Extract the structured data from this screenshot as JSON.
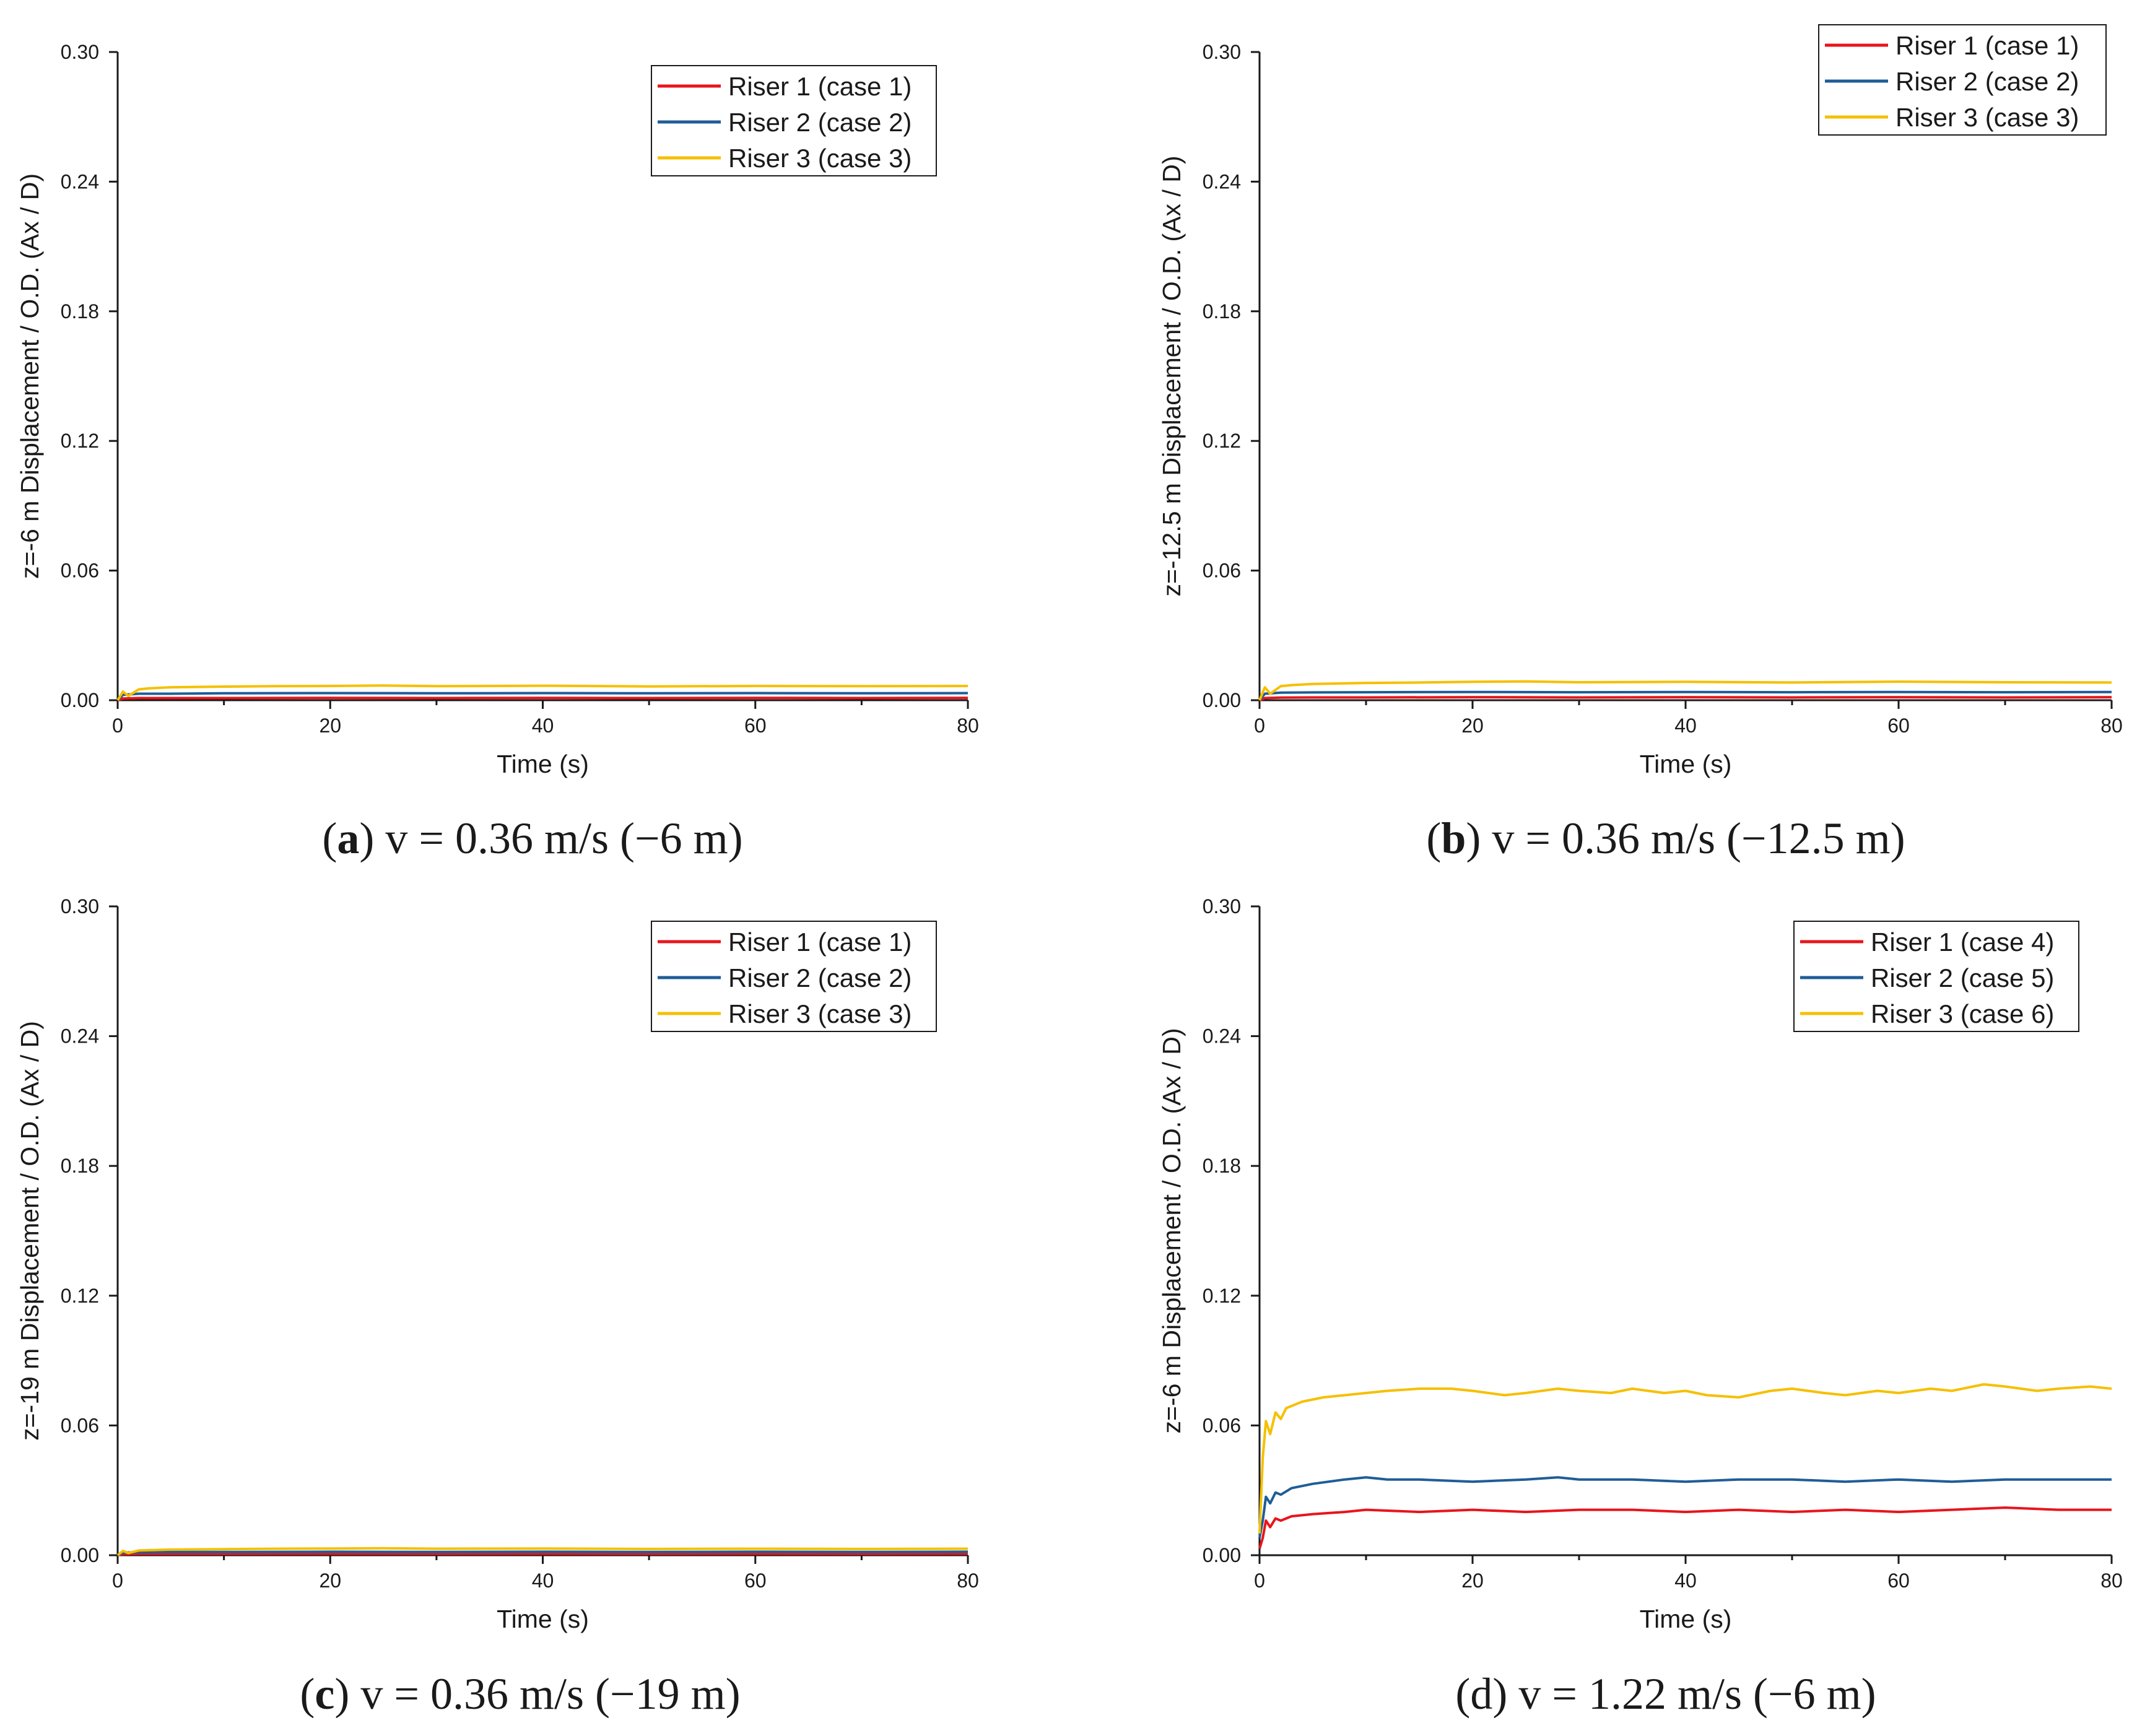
{
  "colors": {
    "red": "#e8151b",
    "blue": "#1f5d98",
    "yellow": "#f5c000",
    "axis": "#1a1a1a"
  },
  "chart_data": [
    {
      "type": "line",
      "panel": "a",
      "caption": {
        "letter": "a",
        "text": "v = 0.36 m/s (−6 m)"
      },
      "xlabel": "Time (s)",
      "ylabel": "z=-6 m Displacement / O.D. (Ax / D)",
      "xlim": [
        0,
        80
      ],
      "ylim": [
        0,
        0.3
      ],
      "xticks": [
        "0",
        "20",
        "40",
        "60",
        "80"
      ],
      "yticks": [
        "0.00",
        "0.06",
        "0.12",
        "0.18",
        "0.24",
        "0.30"
      ],
      "legend_position": "top-right",
      "series": [
        {
          "name": "Riser 1 (case 1)",
          "color": "red",
          "x": [
            0,
            0.5,
            2,
            5,
            10,
            20,
            30,
            40,
            50,
            60,
            70,
            80
          ],
          "values": [
            0.0,
            0.0008,
            0.001,
            0.001,
            0.001,
            0.0011,
            0.001,
            0.0011,
            0.001,
            0.0011,
            0.001,
            0.0011
          ]
        },
        {
          "name": "Riser 2 (case 2)",
          "color": "blue",
          "x": [
            0,
            0.5,
            2,
            5,
            10,
            20,
            30,
            40,
            50,
            60,
            70,
            80
          ],
          "values": [
            0.0,
            0.0025,
            0.003,
            0.003,
            0.0032,
            0.0033,
            0.0032,
            0.0033,
            0.0032,
            0.0033,
            0.0032,
            0.0033
          ]
        },
        {
          "name": "Riser 3 (case 3)",
          "color": "yellow",
          "x": [
            0,
            0.5,
            1,
            2,
            3,
            5,
            10,
            15,
            20,
            25,
            30,
            40,
            50,
            60,
            70,
            80
          ],
          "values": [
            0.0,
            0.004,
            0.002,
            0.005,
            0.0055,
            0.006,
            0.0063,
            0.0065,
            0.0066,
            0.0068,
            0.0065,
            0.0067,
            0.0064,
            0.0066,
            0.0065,
            0.0066
          ]
        }
      ]
    },
    {
      "type": "line",
      "panel": "b",
      "caption": {
        "letter": "b",
        "text": "v = 0.36 m/s (−12.5 m)"
      },
      "xlabel": "Time (s)",
      "ylabel": "z=-12.5 m Displacement / O.D. (Ax / D)",
      "xlim": [
        0,
        80
      ],
      "ylim": [
        0,
        0.3
      ],
      "xticks": [
        "0",
        "20",
        "40",
        "60",
        "80"
      ],
      "yticks": [
        "0.00",
        "0.06",
        "0.12",
        "0.18",
        "0.24",
        "0.30"
      ],
      "legend_position": "top-right",
      "series": [
        {
          "name": "Riser 1 (case 1)",
          "color": "red",
          "x": [
            0,
            0.5,
            2,
            5,
            10,
            20,
            30,
            40,
            50,
            60,
            70,
            80
          ],
          "values": [
            0.0,
            0.001,
            0.0012,
            0.0013,
            0.0013,
            0.0014,
            0.0013,
            0.0014,
            0.0013,
            0.0014,
            0.0013,
            0.0014
          ]
        },
        {
          "name": "Riser 2 (case 2)",
          "color": "blue",
          "x": [
            0,
            0.5,
            2,
            5,
            10,
            20,
            30,
            40,
            50,
            60,
            70,
            80
          ],
          "values": [
            0.0,
            0.003,
            0.0035,
            0.0036,
            0.0037,
            0.0038,
            0.0037,
            0.0038,
            0.0037,
            0.0038,
            0.0037,
            0.0038
          ]
        },
        {
          "name": "Riser 3 (case 3)",
          "color": "yellow",
          "x": [
            0,
            0.5,
            1,
            2,
            3,
            5,
            10,
            15,
            20,
            25,
            30,
            40,
            50,
            60,
            70,
            80
          ],
          "values": [
            0.0,
            0.006,
            0.003,
            0.0065,
            0.007,
            0.0075,
            0.008,
            0.0082,
            0.0085,
            0.0087,
            0.0083,
            0.0085,
            0.0082,
            0.0086,
            0.0083,
            0.0082
          ]
        }
      ]
    },
    {
      "type": "line",
      "panel": "c",
      "caption": {
        "letter": "c",
        "text": "v = 0.36 m/s (−19 m)"
      },
      "xlabel": "Time (s)",
      "ylabel": "z=-19 m Displacement / O.D. (Ax / D)",
      "xlim": [
        0,
        80
      ],
      "ylim": [
        0,
        0.3
      ],
      "xticks": [
        "0",
        "20",
        "40",
        "60",
        "80"
      ],
      "yticks": [
        "0.00",
        "0.06",
        "0.12",
        "0.18",
        "0.24",
        "0.30"
      ],
      "legend_position": "top-right",
      "series": [
        {
          "name": "Riser 1 (case 1)",
          "color": "red",
          "x": [
            0,
            0.5,
            2,
            5,
            10,
            20,
            30,
            40,
            50,
            60,
            70,
            80
          ],
          "values": [
            0.0,
            0.0005,
            0.0006,
            0.0006,
            0.0006,
            0.0007,
            0.0006,
            0.0007,
            0.0006,
            0.0007,
            0.0006,
            0.0007
          ]
        },
        {
          "name": "Riser 2 (case 2)",
          "color": "blue",
          "x": [
            0,
            0.5,
            2,
            5,
            10,
            20,
            30,
            40,
            50,
            60,
            70,
            80
          ],
          "values": [
            0.0,
            0.0012,
            0.0014,
            0.0015,
            0.0015,
            0.0016,
            0.0015,
            0.0016,
            0.0015,
            0.0016,
            0.0015,
            0.0016
          ]
        },
        {
          "name": "Riser 3 (case 3)",
          "color": "yellow",
          "x": [
            0,
            0.5,
            1,
            2,
            5,
            10,
            15,
            20,
            25,
            30,
            40,
            50,
            60,
            70,
            80
          ],
          "values": [
            0.0,
            0.002,
            0.001,
            0.0022,
            0.0026,
            0.0028,
            0.003,
            0.0031,
            0.0032,
            0.003,
            0.0031,
            0.0029,
            0.003,
            0.0029,
            0.003
          ]
        }
      ]
    },
    {
      "type": "line",
      "panel": "d",
      "caption": {
        "letter": "d",
        "text": "v = 1.22 m/s (−6 m)"
      },
      "xlabel": "Time (s)",
      "ylabel": "z=-6 m Displacement / O.D. (Ax / D)",
      "xlim": [
        0,
        80
      ],
      "ylim": [
        0,
        0.3
      ],
      "xticks": [
        "0",
        "20",
        "40",
        "60",
        "80"
      ],
      "yticks": [
        "0.00",
        "0.06",
        "0.12",
        "0.18",
        "0.24",
        "0.30"
      ],
      "legend_position": "top-right",
      "series": [
        {
          "name": "Riser 1 (case 4)",
          "color": "red",
          "x": [
            0,
            0.3,
            0.6,
            1,
            1.5,
            2,
            3,
            5,
            8,
            10,
            15,
            20,
            25,
            30,
            35,
            40,
            45,
            50,
            55,
            60,
            65,
            70,
            75,
            80
          ],
          "values": [
            0.003,
            0.008,
            0.016,
            0.013,
            0.017,
            0.016,
            0.018,
            0.019,
            0.02,
            0.021,
            0.02,
            0.021,
            0.02,
            0.021,
            0.021,
            0.02,
            0.021,
            0.02,
            0.021,
            0.02,
            0.021,
            0.022,
            0.021,
            0.021
          ]
        },
        {
          "name": "Riser 2 (case 5)",
          "color": "blue",
          "x": [
            0,
            0.3,
            0.6,
            1,
            1.5,
            2,
            3,
            5,
            8,
            10,
            12,
            15,
            20,
            25,
            28,
            30,
            35,
            40,
            45,
            50,
            55,
            60,
            65,
            70,
            75,
            80
          ],
          "values": [
            0.008,
            0.016,
            0.027,
            0.024,
            0.029,
            0.028,
            0.031,
            0.033,
            0.035,
            0.036,
            0.035,
            0.035,
            0.034,
            0.035,
            0.036,
            0.035,
            0.035,
            0.034,
            0.035,
            0.035,
            0.034,
            0.035,
            0.034,
            0.035,
            0.035,
            0.035
          ]
        },
        {
          "name": "Riser 3 (case 6)",
          "color": "yellow",
          "x": [
            0,
            0.3,
            0.6,
            1,
            1.5,
            2,
            2.5,
            3,
            4,
            5,
            6,
            8,
            10,
            12,
            15,
            18,
            20,
            23,
            25,
            28,
            30,
            33,
            35,
            38,
            40,
            42,
            45,
            48,
            50,
            53,
            55,
            58,
            60,
            63,
            65,
            68,
            70,
            73,
            75,
            78,
            80
          ],
          "values": [
            0.01,
            0.045,
            0.062,
            0.056,
            0.066,
            0.063,
            0.068,
            0.069,
            0.071,
            0.072,
            0.073,
            0.074,
            0.075,
            0.076,
            0.077,
            0.077,
            0.076,
            0.074,
            0.075,
            0.077,
            0.076,
            0.075,
            0.077,
            0.075,
            0.076,
            0.074,
            0.073,
            0.076,
            0.077,
            0.075,
            0.074,
            0.076,
            0.075,
            0.077,
            0.076,
            0.079,
            0.078,
            0.076,
            0.077,
            0.078,
            0.077
          ]
        }
      ]
    }
  ]
}
